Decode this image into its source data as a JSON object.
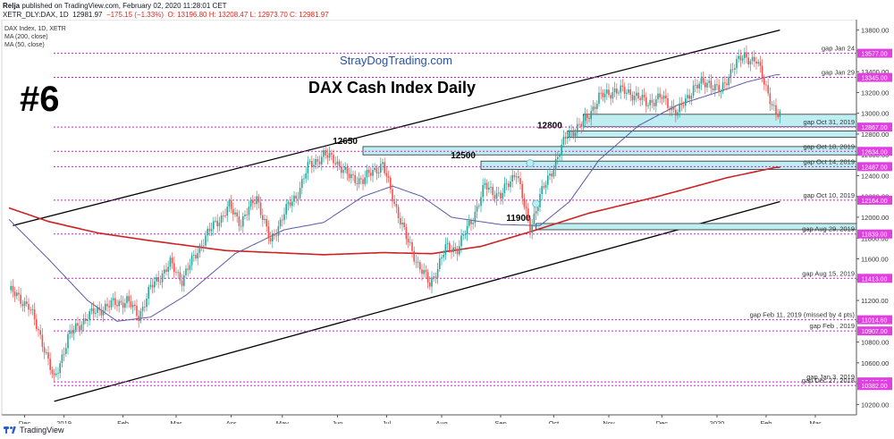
{
  "header": {
    "author": "Relja",
    "published": "published on TradingView.com, February 02, 2020 11:28:01 CET",
    "symbol": "XETR_DLY:DAX, 1D",
    "last": "12981.97",
    "change": "−175.15 (−1.33%)",
    "o": "O: 13196.80",
    "h": "H: 13208.47",
    "l": "L: 12973.70",
    "c": "C: 12981.97"
  },
  "legend": {
    "instrument": "DAX Index, 1D, XETR",
    "ma200": "MA (200, close)",
    "ma50": "MA (50, close)"
  },
  "annotations": {
    "number": "#6",
    "site": "StrayDogTrading.com",
    "title": "DAX Cash Index  Daily"
  },
  "footer": {
    "brand": "TradingView"
  },
  "colors": {
    "up": "#26a69a",
    "down": "#ef5350",
    "ma200": "#cc2222",
    "ma50": "#5a5aa8",
    "gap_line": "#d020d0",
    "zone_fill": "#bfeef2",
    "zone_stroke": "#2a2a2a",
    "label_bg": "#e040e0",
    "site_text": "#2952a3"
  },
  "chart_data": {
    "type": "candlestick",
    "x_axis": [
      "Dec",
      "2019",
      "Feb",
      "Mar",
      "Apr",
      "May",
      "Jun",
      "Jul",
      "Aug",
      "Sep",
      "Oct",
      "Nov",
      "Dec",
      "2020",
      "Feb",
      "Mar"
    ],
    "y_axis": [
      13800,
      13600,
      13400,
      13200,
      13000,
      12800,
      12600,
      12400,
      12200,
      12000,
      11800,
      11600,
      11400,
      11200,
      11000,
      10800,
      10600,
      10400,
      10200
    ],
    "ylim": [
      10100,
      13900
    ],
    "price_path": [
      [
        0,
        11300
      ],
      [
        10,
        11150
      ],
      [
        18,
        10750
      ],
      [
        23,
        10420
      ],
      [
        30,
        10850
      ],
      [
        40,
        11050
      ],
      [
        50,
        11150
      ],
      [
        60,
        11200
      ],
      [
        66,
        11050
      ],
      [
        72,
        11320
      ],
      [
        82,
        11550
      ],
      [
        88,
        11400
      ],
      [
        98,
        11750
      ],
      [
        105,
        11950
      ],
      [
        108,
        12000
      ],
      [
        112,
        12100
      ],
      [
        118,
        11950
      ],
      [
        126,
        12200
      ],
      [
        133,
        11750
      ],
      [
        140,
        12050
      ],
      [
        146,
        12200
      ],
      [
        152,
        12480
      ],
      [
        160,
        12600
      ],
      [
        166,
        12550
      ],
      [
        172,
        12400
      ],
      [
        180,
        12350
      ],
      [
        185,
        12450
      ],
      [
        190,
        12500
      ],
      [
        195,
        12200
      ],
      [
        202,
        11800
      ],
      [
        208,
        11550
      ],
      [
        214,
        11350
      ],
      [
        222,
        11700
      ],
      [
        228,
        11700
      ],
      [
        236,
        12000
      ],
      [
        242,
        12300
      ],
      [
        250,
        12200
      ],
      [
        258,
        12450
      ],
      [
        262,
        12100
      ],
      [
        265,
        11900
      ],
      [
        270,
        12200
      ],
      [
        276,
        12450
      ],
      [
        284,
        12800
      ],
      [
        292,
        12900
      ],
      [
        300,
        13150
      ],
      [
        308,
        13220
      ],
      [
        316,
        13200
      ],
      [
        324,
        13100
      ],
      [
        332,
        13150
      ],
      [
        340,
        13000
      ],
      [
        348,
        13250
      ],
      [
        356,
        13300
      ],
      [
        362,
        13200
      ],
      [
        368,
        13450
      ],
      [
        374,
        13550
      ],
      [
        380,
        13500
      ],
      [
        384,
        13300
      ],
      [
        387,
        13150
      ],
      [
        390,
        12980
      ]
    ],
    "ma200_path": [
      [
        0,
        12090
      ],
      [
        20,
        11960
      ],
      [
        45,
        11850
      ],
      [
        70,
        11780
      ],
      [
        110,
        11680
      ],
      [
        160,
        11640
      ],
      [
        190,
        11660
      ],
      [
        215,
        11650
      ],
      [
        240,
        11720
      ],
      [
        265,
        11860
      ],
      [
        295,
        12040
      ],
      [
        330,
        12200
      ],
      [
        365,
        12380
      ],
      [
        390,
        12480
      ]
    ],
    "ma50_path": [
      [
        0,
        11980
      ],
      [
        20,
        11600
      ],
      [
        40,
        11200
      ],
      [
        55,
        11000
      ],
      [
        72,
        11040
      ],
      [
        90,
        11250
      ],
      [
        115,
        11650
      ],
      [
        140,
        11880
      ],
      [
        160,
        11950
      ],
      [
        180,
        12200
      ],
      [
        195,
        12300
      ],
      [
        210,
        12200
      ],
      [
        225,
        12000
      ],
      [
        250,
        11930
      ],
      [
        270,
        11920
      ],
      [
        285,
        12150
      ],
      [
        300,
        12550
      ],
      [
        320,
        12880
      ],
      [
        340,
        13080
      ],
      [
        360,
        13200
      ],
      [
        375,
        13300
      ],
      [
        390,
        13370
      ]
    ],
    "channel_upper": [
      [
        2,
        11920
      ],
      [
        392,
        13800
      ]
    ],
    "channel_lower": [
      [
        23,
        10230
      ],
      [
        392,
        12150
      ]
    ],
    "gap_lines": [
      {
        "price": 13577,
        "label": "gap Jan 24",
        "tag": "13577.00"
      },
      {
        "price": 13345,
        "label": "gap Jan 29",
        "tag": "13345.00"
      },
      {
        "price": 12867,
        "label": "gap Oct 31, 2019",
        "tag": "12867.00"
      },
      {
        "price": 12634,
        "label": "gap Oct 18, 2019",
        "tag": "12634.00"
      },
      {
        "price": 12487,
        "label": "gap Oct 14, 2019",
        "tag": "12487.00"
      },
      {
        "price": 12164,
        "label": "gap Oct 10, 2019",
        "tag": "12164.00"
      },
      {
        "price": 11839,
        "label": "gap Aug 29, 2019",
        "tag": "11839.00"
      },
      {
        "price": 11413,
        "label": "gap Aug 15, 2019",
        "tag": "11413.00"
      },
      {
        "price": 11014.6,
        "label": "gap Feb 11, 2019 (missed by 4 pts)",
        "tag": "11014.60"
      },
      {
        "price": 10907,
        "label": "gap Feb , 2019",
        "tag": "10907.00"
      },
      {
        "price": 10417,
        "label": "gap Jan 3, 2019",
        "tag": "10417.00"
      },
      {
        "price": 10382,
        "label": "gap Dec 27, 2018",
        "tag": "10382.00"
      }
    ],
    "zones": [
      {
        "label": "",
        "from": 12870,
        "to": 12990,
        "x0": 292
      },
      {
        "label": "12800",
        "from": 12770,
        "to": 12830,
        "x0": 284
      },
      {
        "label": "12650",
        "from": 12600,
        "to": 12680,
        "x0": 180
      },
      {
        "label": "12500",
        "from": 12460,
        "to": 12540,
        "x0": 240
      },
      {
        "label": "11900",
        "from": 11880,
        "to": 11940,
        "x0": 268
      }
    ]
  }
}
